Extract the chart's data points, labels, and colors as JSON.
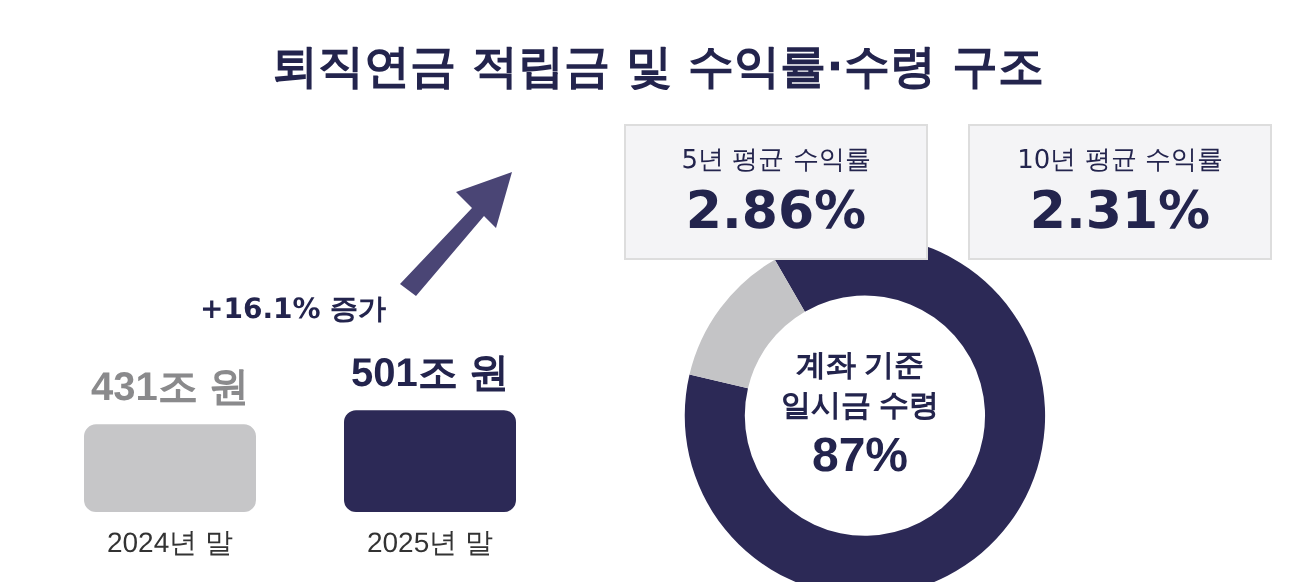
{
  "chart_data": [
    {
      "type": "bar",
      "title": "퇴직연금 적립금 및 수익률·수령 구조",
      "categories": [
        "2024년 말",
        "2025년 말"
      ],
      "values": [
        431,
        501
      ],
      "colors": [
        "#c6c6c8",
        "#2c2956"
      ],
      "value_labels": [
        "431조 원",
        "501조 원"
      ],
      "annotations": [
        "+16.1% 증가"
      ],
      "tick_labels": "x"
    },
    {
      "type": "donut",
      "categories": [
        "계좌 기준 일시금 수령",
        null
      ],
      "values": [
        87,
        13
      ],
      "colors": [
        "#2c2956",
        "#c4c4c6"
      ],
      "value_labels": [
        "87%",
        null
      ],
      "annotations": [
        "5년 평균 수익률",
        "2.86%",
        "10년 평균 수익률",
        "2.31%"
      ]
    }
  ]
}
